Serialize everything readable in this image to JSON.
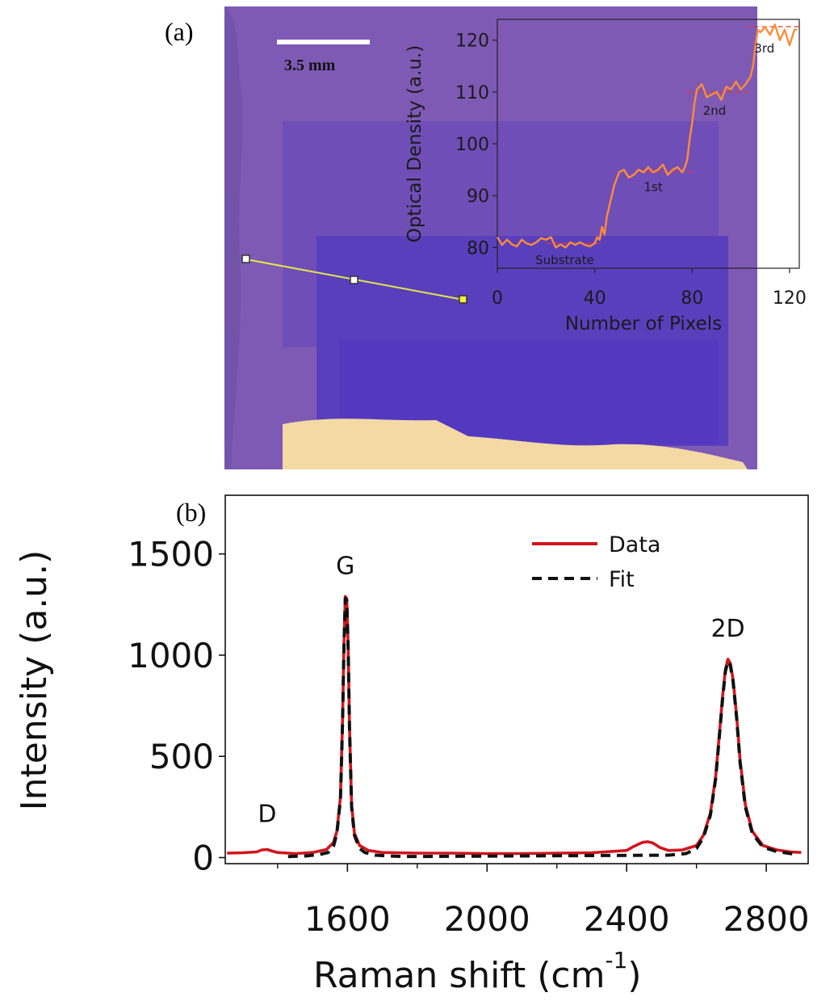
{
  "panels": {
    "a_label": "(a)",
    "b_label": "(b)"
  },
  "photo": {
    "scale_bar_label": "3.5 mm",
    "colors": {
      "background": "#7d59b3",
      "dark_region": "#5a3fb8",
      "gold_contact": "#f6d9a3",
      "line_profile": "#e2e84a"
    }
  },
  "chart_data": [
    {
      "type": "line",
      "panel": "(a) inset",
      "xlabel": "Number of Pixels",
      "ylabel": "Optical Density (a.u.)",
      "xlim": [
        0,
        124
      ],
      "ylim": [
        76,
        124
      ],
      "x_ticks": [
        0,
        40,
        80,
        120
      ],
      "y_ticks": [
        80,
        90,
        100,
        110,
        120
      ],
      "grid": false,
      "series": [
        {
          "color": "#ff8c3a",
          "x": [
            0,
            2,
            4,
            6,
            8,
            10,
            12,
            14,
            16,
            18,
            20,
            22,
            24,
            26,
            28,
            30,
            32,
            34,
            36,
            38,
            40,
            41,
            42,
            43,
            44,
            45,
            46,
            47,
            48,
            50,
            52,
            54,
            56,
            58,
            60,
            62,
            64,
            66,
            68,
            70,
            72,
            74,
            76,
            77,
            78,
            79,
            80,
            81,
            82,
            84,
            86,
            88,
            90,
            92,
            94,
            96,
            98,
            100,
            102,
            104,
            105,
            106,
            107,
            108,
            110,
            112,
            114,
            116,
            118,
            120,
            122,
            123
          ],
          "values": [
            82,
            80.5,
            81.5,
            80.6,
            80.2,
            81.5,
            80.8,
            80.5,
            81,
            81.8,
            81.5,
            82,
            80,
            80.6,
            80,
            81,
            80.5,
            81,
            80.5,
            80.2,
            80.8,
            82,
            81.5,
            84,
            82.5,
            86,
            88,
            90,
            92,
            94.5,
            95,
            93.5,
            94,
            95,
            94.5,
            95.5,
            94.5,
            95,
            96,
            94,
            95,
            95.5,
            94.5,
            95.5,
            97,
            101,
            104,
            108,
            110.5,
            111.5,
            109,
            109.5,
            110,
            108.5,
            111,
            110.5,
            112,
            110.5,
            111.5,
            113,
            115,
            119,
            122,
            121.5,
            122.5,
            121,
            123,
            120,
            122,
            119,
            122,
            122
          ]
        }
      ],
      "reference_levels": [
        {
          "label": "Substrate",
          "value": 80.8,
          "x_range": [
            20,
            42
          ]
        },
        {
          "label": "1st",
          "value": 94.6,
          "x_range": [
            58,
            80
          ]
        },
        {
          "label": "2nd",
          "value": 110,
          "x_range": [
            78,
            103
          ]
        },
        {
          "label": "3rd",
          "value": 122.6,
          "x_range": [
            102,
            124
          ]
        }
      ],
      "reference_color": "#e03535",
      "annotations": [
        "Substrate",
        "1st",
        "2nd",
        "3rd"
      ]
    },
    {
      "type": "line",
      "panel": "(b)",
      "xlabel": "Raman shift (cm",
      "xlabel_superscript": "-1",
      "xlabel_suffix": ")",
      "ylabel": "Intensity (a.u.)",
      "xlim": [
        1250,
        2920
      ],
      "ylim": [
        -30,
        1790
      ],
      "x_ticks": [
        1600,
        2000,
        2400,
        2800
      ],
      "x_minor_ticks": [
        1400,
        1800,
        2200,
        2600
      ],
      "y_ticks": [
        0,
        500,
        1000,
        1500
      ],
      "grid": false,
      "legend_position": "top-right",
      "series": [
        {
          "name": "Data",
          "color": "#d0161e",
          "style": "solid",
          "x": [
            1255,
            1300,
            1340,
            1355,
            1370,
            1385,
            1400,
            1450,
            1500,
            1540,
            1560,
            1570,
            1580,
            1586,
            1590,
            1594,
            1598,
            1602,
            1606,
            1612,
            1620,
            1635,
            1660,
            1700,
            1800,
            1900,
            2000,
            2100,
            2200,
            2300,
            2400,
            2420,
            2445,
            2460,
            2475,
            2495,
            2520,
            2560,
            2600,
            2620,
            2640,
            2655,
            2665,
            2675,
            2683,
            2690,
            2697,
            2705,
            2715,
            2725,
            2740,
            2760,
            2790,
            2830,
            2870,
            2900
          ],
          "values": [
            22,
            24,
            28,
            38,
            40,
            32,
            25,
            20,
            25,
            40,
            75,
            130,
            300,
            680,
            1050,
            1290,
            1280,
            1050,
            650,
            260,
            120,
            60,
            35,
            25,
            22,
            22,
            20,
            20,
            22,
            24,
            35,
            55,
            75,
            78,
            72,
            50,
            35,
            38,
            60,
            110,
            220,
            400,
            600,
            800,
            930,
            980,
            960,
            880,
            700,
            480,
            260,
            130,
            60,
            38,
            28,
            25
          ]
        },
        {
          "name": "Fit",
          "color": "#111111",
          "style": "dashed",
          "x": [
            1430,
            1480,
            1520,
            1545,
            1560,
            1570,
            1580,
            1586,
            1590,
            1594,
            1598,
            1602,
            1606,
            1612,
            1620,
            1635,
            1650,
            1680,
            1720,
            1760,
            2520,
            2570,
            2600,
            2620,
            2640,
            2655,
            2665,
            2675,
            2683,
            2690,
            2697,
            2705,
            2715,
            2725,
            2740,
            2760,
            2790,
            2830,
            2870,
            2890
          ],
          "values": [
            5,
            8,
            15,
            25,
            55,
            120,
            290,
            670,
            1040,
            1280,
            1270,
            1040,
            640,
            250,
            110,
            45,
            25,
            12,
            8,
            5,
            12,
            20,
            45,
            100,
            210,
            390,
            590,
            790,
            920,
            970,
            950,
            870,
            690,
            470,
            250,
            120,
            52,
            30,
            20,
            15
          ]
        }
      ],
      "annotations": [
        {
          "label": "D",
          "x": 1370
        },
        {
          "label": "G",
          "x": 1594
        },
        {
          "label": "2D",
          "x": 2690
        }
      ]
    }
  ]
}
